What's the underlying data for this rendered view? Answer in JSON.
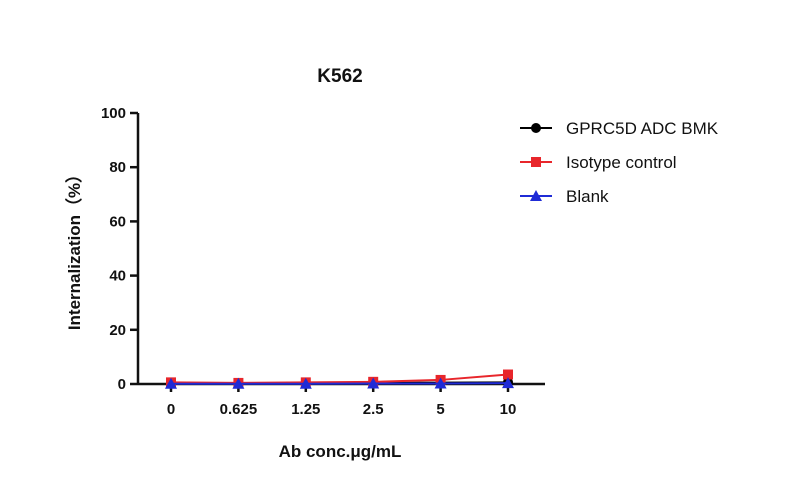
{
  "chart_data": {
    "type": "line",
    "title": "K562",
    "xlabel": "Ab conc.μg/mL",
    "ylabel": "Internalization（%）",
    "categories": [
      "0",
      "0.625",
      "1.25",
      "2.5",
      "5",
      "10"
    ],
    "ylim": [
      0,
      100
    ],
    "yticks": [
      0,
      20,
      40,
      60,
      80,
      100
    ],
    "grid": false,
    "legend_position": "top-right",
    "series": [
      {
        "name": "GPRC5D ADC BMK",
        "marker": "circle",
        "color": "#000000",
        "values": [
          0.3,
          0.2,
          0.3,
          0.4,
          0.5,
          0.6
        ]
      },
      {
        "name": "Isotype control",
        "marker": "square",
        "color": "#e8262b",
        "values": [
          0.6,
          0.4,
          0.6,
          0.8,
          1.5,
          3.5
        ]
      },
      {
        "name": "Blank",
        "marker": "triangle",
        "color": "#1f2bd6",
        "values": [
          0.1,
          0.1,
          0.1,
          0.2,
          0.2,
          0.3
        ]
      }
    ]
  }
}
